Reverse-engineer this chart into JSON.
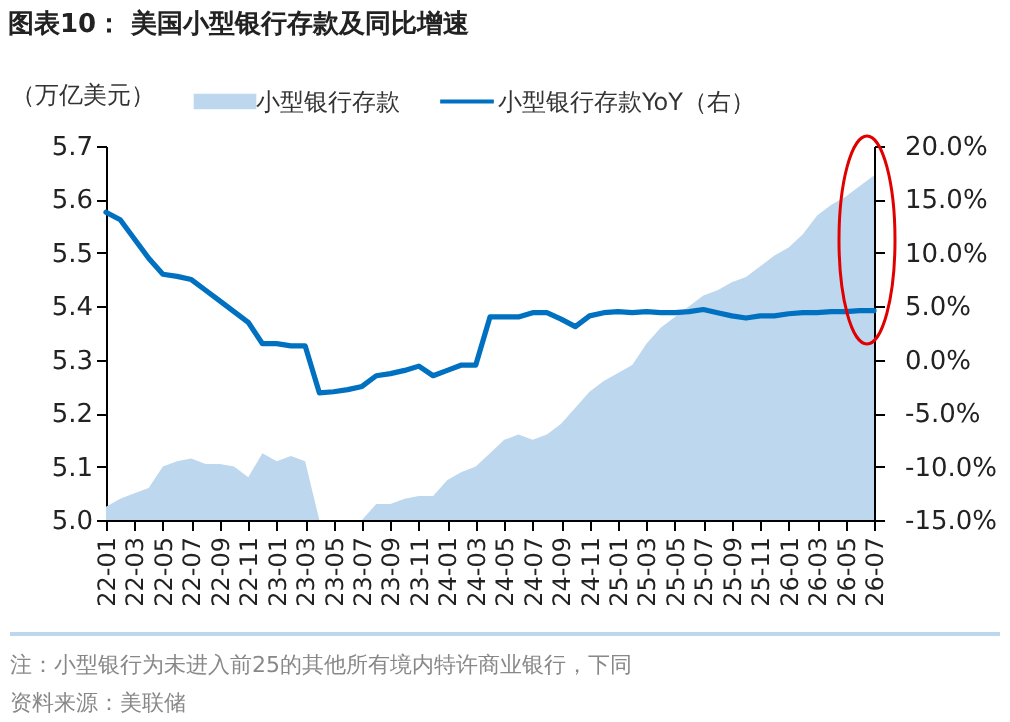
{
  "chart_data": {
    "type": "area",
    "title": "图表10： 美国小型银行存款及同比增速",
    "ylabel": "（万亿美元）",
    "categories": [
      "22-01",
      null,
      "22-03",
      null,
      "22-05",
      null,
      "22-07",
      null,
      "22-09",
      null,
      "22-11",
      null,
      "23-01",
      null,
      "23-03",
      null,
      "23-05",
      null,
      "23-07",
      null,
      "23-09",
      null,
      "23-11",
      null,
      "24-01",
      null,
      "24-03",
      null,
      "24-05",
      null,
      "24-07",
      null,
      "24-09",
      null,
      "24-11",
      null,
      "25-01",
      null,
      "25-03",
      null,
      "25-05",
      null,
      "25-07",
      null,
      "25-09",
      null,
      "25-11",
      null,
      "26-01",
      null,
      "26-03",
      null,
      "26-05",
      null,
      "26-07"
    ],
    "series": [
      {
        "name": "小型银行存款",
        "color": "#bdd7ee",
        "values": [
          5.025,
          5.04,
          5.05,
          5.06,
          5.1,
          5.11,
          5.115,
          5.105,
          5.105,
          5.1,
          5.08,
          5.125,
          5.11,
          5.12,
          5.11,
          5.0,
          5.0,
          5.0,
          5.0,
          5.03,
          5.03,
          5.04,
          5.045,
          5.045,
          5.075,
          5.09,
          5.1,
          5.125,
          5.15,
          5.16,
          5.15,
          5.16,
          5.18,
          5.21,
          5.24,
          5.26,
          5.275,
          5.29,
          5.33,
          5.36,
          5.38,
          5.4,
          5.42,
          5.43,
          5.445,
          5.455,
          5.475,
          5.495,
          5.51,
          5.535,
          5.57,
          5.59,
          5.605,
          5.625,
          5.645
        ]
      },
      {
        "name": "小型银行存款YoY（右）",
        "type": "line",
        "axis": "y2",
        "color": "#0070c0",
        "values": [
          13.8,
          13.1,
          11.3,
          9.5,
          8.0,
          7.8,
          7.5,
          6.5,
          5.5,
          4.5,
          3.5,
          1.5,
          1.5,
          1.3,
          1.3,
          -3.1,
          -3.0,
          -2.8,
          -2.5,
          -1.5,
          -1.3,
          -1.0,
          -0.6,
          -1.5,
          -1.0,
          -0.5,
          -0.5,
          4.0,
          4.0,
          4.0,
          4.4,
          4.4,
          3.8,
          3.1,
          4.1,
          4.4,
          4.5,
          4.4,
          4.5,
          4.4,
          4.4,
          4.5,
          4.7,
          4.4,
          4.1,
          3.9,
          4.1,
          4.1,
          4.3,
          4.4,
          4.4,
          4.5,
          4.5,
          4.6,
          4.6
        ]
      }
    ],
    "ylim": [
      5.0,
      5.7
    ],
    "yticks": [
      {
        "value": 5.0,
        "label": "5.0"
      },
      5.1,
      5.2,
      5.3,
      5.4,
      5.5,
      5.6,
      5.7
    ],
    "y2lim": [
      -15,
      20
    ],
    "y2ticks": [
      {
        "value": -15,
        "label": "-15.0%"
      },
      {
        "value": -10,
        "label": "-10.0%"
      },
      {
        "value": -5,
        "label": "-5.0%"
      },
      {
        "value": 0,
        "label": "0.0%"
      },
      {
        "value": 5,
        "label": "5.0%"
      },
      {
        "value": 10,
        "label": "10.0%"
      },
      {
        "value": 15,
        "label": "15.0%"
      },
      {
        "value": 20,
        "label": "20.0%"
      }
    ],
    "legend": "top",
    "annotations": [
      "注：小型银行为未进入前25的其他所有境内特许商业银行，下同",
      "资料来源：美联储"
    ]
  }
}
